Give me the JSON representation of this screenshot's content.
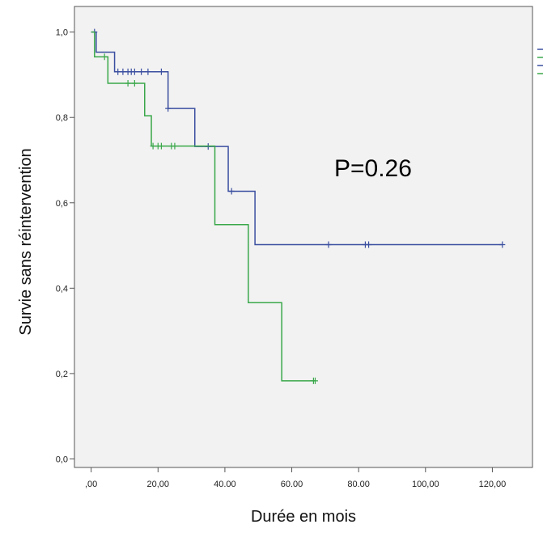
{
  "chart_data": {
    "type": "line",
    "subtype": "kaplan-meier",
    "annotation": "P=0.26",
    "xlabel": "Durée en mois",
    "ylabel": "Survie sans réintervention",
    "xlim": [
      -5,
      132
    ],
    "ylim": [
      -0.02,
      1.06
    ],
    "x_ticks": [
      0,
      20,
      40,
      60,
      80,
      100,
      120
    ],
    "x_tick_labels": [
      ",00",
      "20,00",
      "40.00",
      "60.00",
      "80.00",
      "100,00",
      "120,00"
    ],
    "y_ticks": [
      0,
      0.2,
      0.4,
      0.6,
      0.8,
      1.0
    ],
    "y_tick_labels": [
      "0,0",
      "0,2",
      "0,4",
      "0,6",
      "0,8",
      "1,0"
    ],
    "grid": false,
    "legend_position": "right (cropped, labels not visible)",
    "colors": {
      "blue": "#3b4fa0",
      "green": "#3aa84a",
      "plot_bg": "#f2f2f2",
      "axis": "#555555"
    },
    "series": [
      {
        "color": "#3b4fa0",
        "steps": [
          [
            0,
            1.0
          ],
          [
            1.5,
            0.953
          ],
          [
            7,
            0.907
          ],
          [
            23,
            0.821
          ],
          [
            31,
            0.732
          ],
          [
            41,
            0.627
          ],
          [
            49,
            0.502
          ],
          [
            123,
            0.502
          ]
        ],
        "censored": [
          [
            1,
            1.0
          ],
          [
            8,
            0.907
          ],
          [
            9.5,
            0.907
          ],
          [
            11,
            0.907
          ],
          [
            12,
            0.907
          ],
          [
            13,
            0.907
          ],
          [
            15,
            0.907
          ],
          [
            17,
            0.907
          ],
          [
            21,
            0.907
          ],
          [
            23,
            0.821
          ],
          [
            35,
            0.732
          ],
          [
            42,
            0.627
          ],
          [
            71,
            0.502
          ],
          [
            82,
            0.502
          ],
          [
            83,
            0.502
          ],
          [
            123,
            0.502
          ]
        ]
      },
      {
        "color": "#3aa84a",
        "steps": [
          [
            0,
            1.0
          ],
          [
            1,
            0.942
          ],
          [
            5,
            0.88
          ],
          [
            16,
            0.804
          ],
          [
            18,
            0.733
          ],
          [
            37,
            0.549
          ],
          [
            47,
            0.366
          ],
          [
            57,
            0.183
          ],
          [
            67,
            0.183
          ]
        ],
        "censored": [
          [
            4,
            0.942
          ],
          [
            11,
            0.88
          ],
          [
            13,
            0.88
          ],
          [
            18.5,
            0.733
          ],
          [
            20,
            0.733
          ],
          [
            21,
            0.733
          ],
          [
            24,
            0.733
          ],
          [
            25,
            0.733
          ],
          [
            66.5,
            0.183
          ],
          [
            67,
            0.183
          ]
        ]
      }
    ]
  }
}
